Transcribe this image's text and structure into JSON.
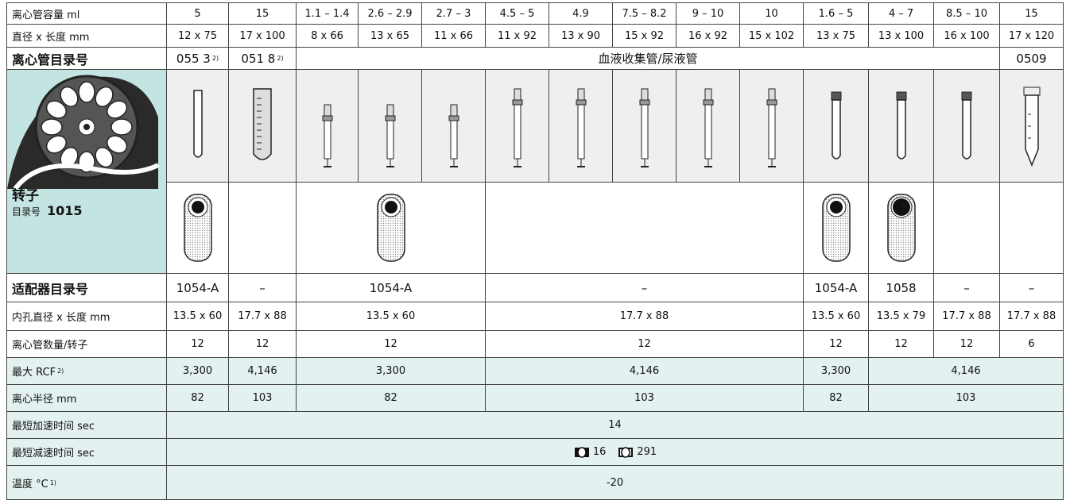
{
  "rows": [
    {
      "label": "离心管容量 ml",
      "cells": [
        "5",
        "15",
        "1.1 – 1.4",
        "2.6 – 2.9",
        "2.7 – 3",
        "4.5 – 5",
        "4.9",
        "7.5 – 8.2",
        "9 – 10",
        "10",
        "1.6 – 5",
        "4 – 7",
        "8.5 – 10",
        "15"
      ]
    },
    {
      "label": "直径 x 长度 mm",
      "cells": [
        "12 x 75",
        "17 x 100",
        "8 x 66",
        "13 x 65",
        "11 x 66",
        "11 x 92",
        "13 x 90",
        "15 x 92",
        "16 x 92",
        "15 x 102",
        "13 x 75",
        "13 x 100",
        "16 x 100",
        "17 x 120"
      ]
    },
    {
      "label": "离心管目录号",
      "cells": [
        {
          "text": "055 3",
          "note": "2)"
        },
        {
          "text": "051 8",
          "note": "2)"
        },
        "血液收集管/尿液管",
        "0509"
      ]
    },
    {
      "label": "适配器目录号",
      "cells": [
        "1054-A",
        "–",
        "1054-A",
        "–",
        "1054-A",
        "1058",
        "–",
        "–"
      ]
    },
    {
      "label": "内孔直径 x 长度 mm",
      "cells": [
        "13.5 x 60",
        "17.7 x 88",
        "13.5 x 60",
        "17.7 x 88",
        "13.5 x 60",
        "13.5 x 79",
        "17.7 x 88",
        "17.7 x 88"
      ]
    },
    {
      "label": "离心管数量/转子",
      "cells": [
        "12",
        "12",
        "12",
        "12",
        "12",
        "12",
        "12",
        "6"
      ]
    },
    {
      "label": "最大 RCF",
      "label_note": "2)",
      "cells": [
        "3,300",
        "4,146",
        "3,300",
        "4,146",
        "3,300",
        "4,146"
      ]
    },
    {
      "label": "离心半径 mm",
      "cells": [
        "82",
        "103",
        "82",
        "103",
        "82",
        "103"
      ]
    },
    {
      "label": "最短加速时间 sec",
      "cells": [
        "14"
      ]
    },
    {
      "label": "最短减速时间 sec",
      "cells": [
        "16",
        "291"
      ]
    },
    {
      "label": "温度 °C",
      "label_note": "1)",
      "cells": [
        "-20"
      ]
    }
  ],
  "rotor": {
    "label": "转子",
    "catalog_label": "目录号",
    "catalog_number": "1015"
  }
}
